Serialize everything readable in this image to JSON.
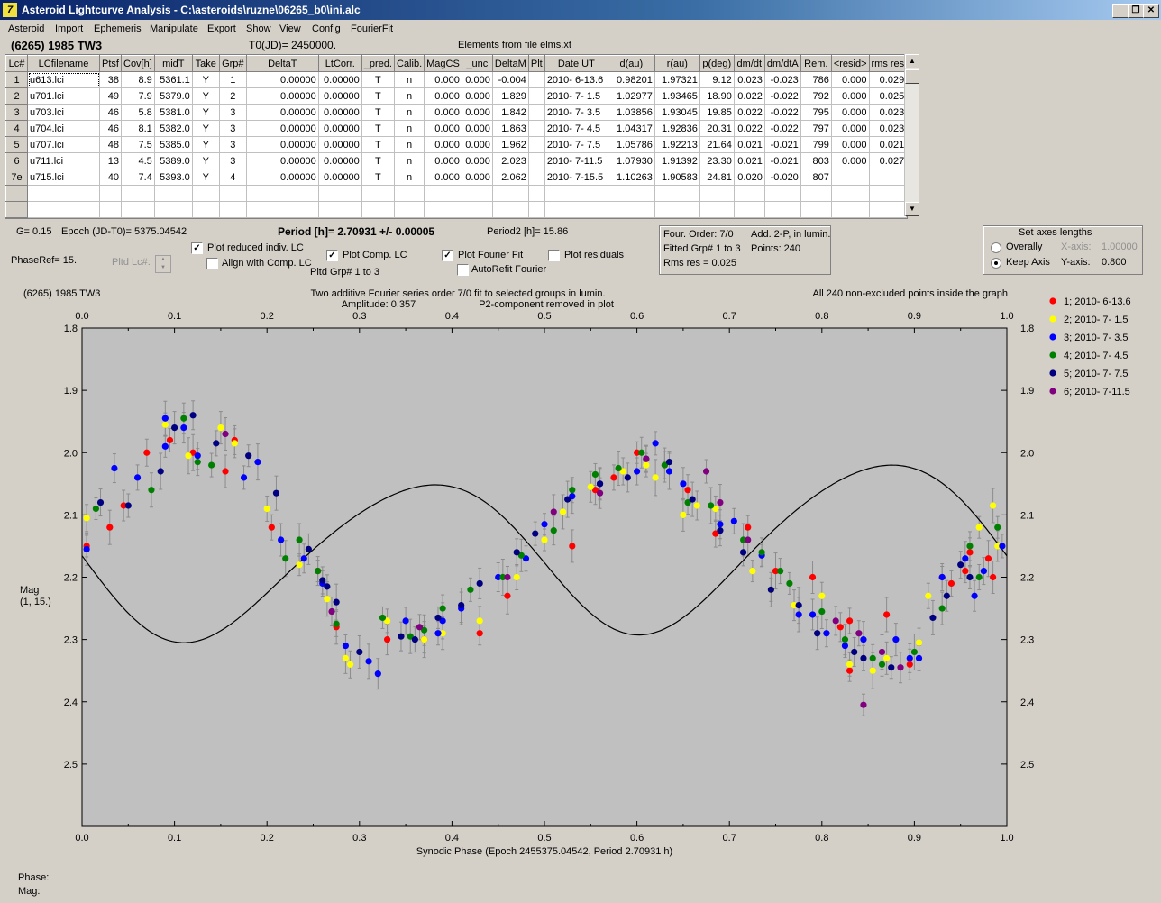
{
  "window": {
    "title": "Asteroid Lightcurve Analysis - C:\\asteroids\\ruzne\\06265_b0\\ini.alc",
    "min_label": "_",
    "restore_label": "❐",
    "close_label": "✕"
  },
  "menu": [
    "Asteroid",
    "Import",
    "Ephemeris",
    "Manipulate",
    "Export",
    "Show",
    "View",
    "Config",
    "FourierFit"
  ],
  "header": {
    "asteroid_name": "(6265) 1985 TW3",
    "t0": "T0(JD)= 2450000.",
    "elements_source": "Elements from file elms.xt"
  },
  "table": {
    "columns": [
      "Lc#",
      "LCfilename",
      "Ptsf",
      "Cov[h]",
      "midT",
      "Take",
      "Grp#",
      "DeltaT",
      "LtCorr.",
      "_pred.",
      "Calib.",
      "MagCS",
      "_unc",
      "DeltaM",
      "Plt",
      "Date UT",
      "d(au)",
      "r(au)",
      "p(deg)",
      "dm/dt",
      "dm/dtA",
      "Rem.",
      "<resid>",
      "rms res"
    ],
    "rows": [
      [
        "1",
        "u613.lci",
        "38",
        "8.9",
        "5361.1",
        "Y",
        "1",
        "0.00000",
        "0.00000",
        "T",
        "n",
        "0.000",
        "0.000",
        "-0.004",
        "",
        "2010- 6-13.6",
        "0.98201",
        "1.97321",
        "9.12",
        "0.023",
        "-0.023",
        "786",
        "0.000",
        "0.029"
      ],
      [
        "2",
        "u701.lci",
        "49",
        "7.9",
        "5379.0",
        "Y",
        "2",
        "0.00000",
        "0.00000",
        "T",
        "n",
        "0.000",
        "0.000",
        "1.829",
        "",
        "2010- 7- 1.5",
        "1.02977",
        "1.93465",
        "18.90",
        "0.022",
        "-0.022",
        "792",
        "0.000",
        "0.025"
      ],
      [
        "3",
        "u703.lci",
        "46",
        "5.8",
        "5381.0",
        "Y",
        "3",
        "0.00000",
        "0.00000",
        "T",
        "n",
        "0.000",
        "0.000",
        "1.842",
        "",
        "2010- 7- 3.5",
        "1.03856",
        "1.93045",
        "19.85",
        "0.022",
        "-0.022",
        "795",
        "0.000",
        "0.023"
      ],
      [
        "4",
        "u704.lci",
        "46",
        "8.1",
        "5382.0",
        "Y",
        "3",
        "0.00000",
        "0.00000",
        "T",
        "n",
        "0.000",
        "0.000",
        "1.863",
        "",
        "2010- 7- 4.5",
        "1.04317",
        "1.92836",
        "20.31",
        "0.022",
        "-0.022",
        "797",
        "0.000",
        "0.023"
      ],
      [
        "5",
        "u707.lci",
        "48",
        "7.5",
        "5385.0",
        "Y",
        "3",
        "0.00000",
        "0.00000",
        "T",
        "n",
        "0.000",
        "0.000",
        "1.962",
        "",
        "2010- 7- 7.5",
        "1.05786",
        "1.92213",
        "21.64",
        "0.021",
        "-0.021",
        "799",
        "0.000",
        "0.021"
      ],
      [
        "6",
        "u711.lci",
        "13",
        "4.5",
        "5389.0",
        "Y",
        "3",
        "0.00000",
        "0.00000",
        "T",
        "n",
        "0.000",
        "0.000",
        "2.023",
        "",
        "2010- 7-11.5",
        "1.07930",
        "1.91392",
        "23.30",
        "0.021",
        "-0.021",
        "803",
        "0.000",
        "0.027"
      ],
      [
        "7e",
        "u715.lci",
        "40",
        "7.4",
        "5393.0",
        "Y",
        "4",
        "0.00000",
        "0.00000",
        "T",
        "n",
        "0.000",
        "0.000",
        "2.062",
        "",
        "2010- 7-15.5",
        "1.10263",
        "1.90583",
        "24.81",
        "0.020",
        "-0.020",
        "807",
        "",
        ""
      ]
    ]
  },
  "controls": {
    "g_value": "G= 0.15",
    "epoch": "Epoch (JD-T0)= 5375.04542",
    "period": "Period [h]= 2.70931 +/- 0.00005",
    "period2": "Period2 [h]= 15.86",
    "phaseref": "PhaseRef= 15.",
    "pltd_lc": "Pltd Lc#:",
    "plot_reduced": "Plot reduced indiv. LC",
    "align_comp": "Align with Comp. LC",
    "plot_comp": "Plot Comp. LC",
    "pltd_grp": "Pltd Grp#  1   to    3",
    "plot_fourier": "Plot Fourier Fit",
    "autorefit": "AutoRefit Fourier",
    "plot_residuals": "Plot residuals",
    "four_order": "Four. Order:  7/0",
    "add_2p": "Add. 2-P, in lumin.",
    "fitted_grp": "Fitted Grp# 1 to 3",
    "points": "Points: 240",
    "rms_res": "Rms res     = 0.025",
    "axes_title": "Set axes lengths",
    "overally": "Overally",
    "keep_axis": "Keep Axis",
    "xaxis_label": "X-axis:",
    "xaxis_value": "1.00000",
    "yaxis_label": "Y-axis:",
    "yaxis_value": "0.800"
  },
  "plot_texts": {
    "top_left": "(6265) 1985 TW3",
    "top_center1": "Two additive Fourier series order 7/0 fit to selected groups in lumin.",
    "top_center2a": "Amplitude: 0.357",
    "top_center2b": "P2-component removed in plot",
    "top_right": "All 240 non-excluded points inside the graph",
    "ylabel1": "Mag",
    "ylabel2": "(1, 15.)",
    "xlabel": "Synodic Phase (Epoch 2455375.04542, Period 2.70931 h)",
    "phase_label": "Phase:",
    "mag_label": "Mag:"
  },
  "chart_data": {
    "type": "scatter",
    "x_ticks": [
      "0.0",
      "0.1",
      "0.2",
      "0.3",
      "0.4",
      "0.5",
      "0.6",
      "0.7",
      "0.8",
      "0.9",
      "1.0"
    ],
    "y_ticks": [
      "1.8",
      "1.9",
      "2.0",
      "2.1",
      "2.2",
      "2.3",
      "2.4",
      "2.5"
    ],
    "xlim": [
      0.0,
      1.0
    ],
    "ylim": [
      1.8,
      2.6
    ],
    "y_inverted": true,
    "series": [
      {
        "name": "1; 2010- 6-13.6",
        "color": "#ff0000",
        "points": [
          [
            0.005,
            2.15
          ],
          [
            0.03,
            2.12
          ],
          [
            0.045,
            2.085
          ],
          [
            0.07,
            2.0
          ],
          [
            0.095,
            1.98
          ],
          [
            0.12,
            2.0
          ],
          [
            0.155,
            2.03
          ],
          [
            0.165,
            1.98
          ],
          [
            0.205,
            2.12
          ],
          [
            0.255,
            2.19
          ],
          [
            0.275,
            2.28
          ],
          [
            0.33,
            2.3
          ],
          [
            0.37,
            2.3
          ],
          [
            0.43,
            2.29
          ],
          [
            0.46,
            2.23
          ],
          [
            0.53,
            2.15
          ],
          [
            0.555,
            2.06
          ],
          [
            0.575,
            2.04
          ],
          [
            0.6,
            2.0
          ],
          [
            0.63,
            2.02
          ],
          [
            0.655,
            2.06
          ],
          [
            0.685,
            2.13
          ],
          [
            0.72,
            2.12
          ],
          [
            0.75,
            2.19
          ],
          [
            0.79,
            2.2
          ],
          [
            0.82,
            2.28
          ],
          [
            0.83,
            2.27
          ],
          [
            0.83,
            2.35
          ],
          [
            0.87,
            2.26
          ],
          [
            0.895,
            2.34
          ],
          [
            0.93,
            2.2
          ],
          [
            0.955,
            2.19
          ],
          [
            0.98,
            2.17
          ],
          [
            0.985,
            2.2
          ],
          [
            0.96,
            2.16
          ],
          [
            0.94,
            2.21
          ]
        ]
      },
      {
        "name": "2; 2010- 7- 1.5",
        "color": "#ffff00",
        "points": [
          [
            0.005,
            2.105
          ],
          [
            0.09,
            1.955
          ],
          [
            0.115,
            2.005
          ],
          [
            0.15,
            1.96
          ],
          [
            0.165,
            1.985
          ],
          [
            0.2,
            2.09
          ],
          [
            0.235,
            2.18
          ],
          [
            0.265,
            2.235
          ],
          [
            0.285,
            2.33
          ],
          [
            0.29,
            2.34
          ],
          [
            0.33,
            2.27
          ],
          [
            0.37,
            2.3
          ],
          [
            0.39,
            2.29
          ],
          [
            0.43,
            2.27
          ],
          [
            0.47,
            2.2
          ],
          [
            0.5,
            2.14
          ],
          [
            0.52,
            2.095
          ],
          [
            0.55,
            2.055
          ],
          [
            0.585,
            2.03
          ],
          [
            0.61,
            2.02
          ],
          [
            0.62,
            2.04
          ],
          [
            0.65,
            2.1
          ],
          [
            0.665,
            2.085
          ],
          [
            0.685,
            2.09
          ],
          [
            0.725,
            2.19
          ],
          [
            0.745,
            2.22
          ],
          [
            0.77,
            2.245
          ],
          [
            0.8,
            2.23
          ],
          [
            0.83,
            2.34
          ],
          [
            0.855,
            2.35
          ],
          [
            0.87,
            2.33
          ],
          [
            0.905,
            2.305
          ],
          [
            0.915,
            2.23
          ],
          [
            0.97,
            2.12
          ],
          [
            0.985,
            2.085
          ],
          [
            0.99,
            2.15
          ]
        ]
      },
      {
        "name": "3; 2010- 7- 3.5",
        "color": "#0000ff",
        "points": [
          [
            0.005,
            2.155
          ],
          [
            0.035,
            2.025
          ],
          [
            0.06,
            2.04
          ],
          [
            0.09,
            1.99
          ],
          [
            0.09,
            1.945
          ],
          [
            0.11,
            1.96
          ],
          [
            0.125,
            2.005
          ],
          [
            0.175,
            2.04
          ],
          [
            0.19,
            2.015
          ],
          [
            0.215,
            2.14
          ],
          [
            0.24,
            2.17
          ],
          [
            0.26,
            2.21
          ],
          [
            0.285,
            2.31
          ],
          [
            0.31,
            2.335
          ],
          [
            0.32,
            2.355
          ],
          [
            0.35,
            2.27
          ],
          [
            0.385,
            2.29
          ],
          [
            0.39,
            2.27
          ],
          [
            0.41,
            2.25
          ],
          [
            0.45,
            2.2
          ],
          [
            0.48,
            2.17
          ],
          [
            0.5,
            2.115
          ],
          [
            0.53,
            2.07
          ],
          [
            0.56,
            2.05
          ],
          [
            0.6,
            2.03
          ],
          [
            0.62,
            1.985
          ],
          [
            0.635,
            2.03
          ],
          [
            0.65,
            2.05
          ],
          [
            0.69,
            2.115
          ],
          [
            0.705,
            2.11
          ],
          [
            0.735,
            2.165
          ],
          [
            0.775,
            2.26
          ],
          [
            0.79,
            2.26
          ],
          [
            0.805,
            2.29
          ],
          [
            0.825,
            2.31
          ],
          [
            0.845,
            2.3
          ],
          [
            0.88,
            2.3
          ],
          [
            0.895,
            2.33
          ],
          [
            0.905,
            2.33
          ],
          [
            0.93,
            2.2
          ],
          [
            0.955,
            2.17
          ],
          [
            0.965,
            2.23
          ],
          [
            0.975,
            2.19
          ],
          [
            0.995,
            2.15
          ]
        ]
      },
      {
        "name": "4; 2010- 7- 4.5",
        "color": "#008000",
        "points": [
          [
            0.015,
            2.09
          ],
          [
            0.075,
            2.06
          ],
          [
            0.11,
            1.945
          ],
          [
            0.125,
            2.015
          ],
          [
            0.14,
            2.02
          ],
          [
            0.22,
            2.17
          ],
          [
            0.235,
            2.14
          ],
          [
            0.255,
            2.19
          ],
          [
            0.275,
            2.275
          ],
          [
            0.325,
            2.265
          ],
          [
            0.355,
            2.295
          ],
          [
            0.37,
            2.285
          ],
          [
            0.39,
            2.25
          ],
          [
            0.42,
            2.22
          ],
          [
            0.455,
            2.2
          ],
          [
            0.475,
            2.165
          ],
          [
            0.51,
            2.125
          ],
          [
            0.53,
            2.06
          ],
          [
            0.555,
            2.035
          ],
          [
            0.58,
            2.025
          ],
          [
            0.605,
            2.0
          ],
          [
            0.63,
            2.02
          ],
          [
            0.655,
            2.08
          ],
          [
            0.68,
            2.085
          ],
          [
            0.715,
            2.14
          ],
          [
            0.735,
            2.16
          ],
          [
            0.755,
            2.19
          ],
          [
            0.765,
            2.21
          ],
          [
            0.8,
            2.255
          ],
          [
            0.825,
            2.3
          ],
          [
            0.855,
            2.33
          ],
          [
            0.865,
            2.34
          ],
          [
            0.9,
            2.32
          ],
          [
            0.93,
            2.25
          ],
          [
            0.96,
            2.15
          ],
          [
            0.97,
            2.2
          ],
          [
            0.99,
            2.12
          ]
        ]
      },
      {
        "name": "5; 2010- 7- 7.5",
        "color": "#000080",
        "points": [
          [
            0.02,
            2.08
          ],
          [
            0.05,
            2.085
          ],
          [
            0.085,
            2.03
          ],
          [
            0.1,
            1.96
          ],
          [
            0.12,
            1.94
          ],
          [
            0.145,
            1.985
          ],
          [
            0.18,
            2.005
          ],
          [
            0.21,
            2.065
          ],
          [
            0.245,
            2.155
          ],
          [
            0.26,
            2.205
          ],
          [
            0.265,
            2.215
          ],
          [
            0.275,
            2.24
          ],
          [
            0.3,
            2.32
          ],
          [
            0.345,
            2.295
          ],
          [
            0.36,
            2.3
          ],
          [
            0.385,
            2.265
          ],
          [
            0.41,
            2.245
          ],
          [
            0.43,
            2.21
          ],
          [
            0.47,
            2.16
          ],
          [
            0.49,
            2.13
          ],
          [
            0.525,
            2.075
          ],
          [
            0.56,
            2.05
          ],
          [
            0.59,
            2.04
          ],
          [
            0.61,
            2.01
          ],
          [
            0.635,
            2.015
          ],
          [
            0.66,
            2.075
          ],
          [
            0.69,
            2.125
          ],
          [
            0.715,
            2.16
          ],
          [
            0.745,
            2.22
          ],
          [
            0.775,
            2.245
          ],
          [
            0.795,
            2.29
          ],
          [
            0.835,
            2.32
          ],
          [
            0.845,
            2.33
          ],
          [
            0.875,
            2.345
          ],
          [
            0.92,
            2.265
          ],
          [
            0.935,
            2.23
          ],
          [
            0.95,
            2.18
          ],
          [
            0.96,
            2.2
          ]
        ]
      },
      {
        "name": "6; 2010- 7-11.5",
        "color": "#800080",
        "points": [
          [
            0.155,
            1.97
          ],
          [
            0.27,
            2.255
          ],
          [
            0.365,
            2.28
          ],
          [
            0.46,
            2.2
          ],
          [
            0.51,
            2.095
          ],
          [
            0.56,
            2.065
          ],
          [
            0.61,
            2.01
          ],
          [
            0.675,
            2.03
          ],
          [
            0.69,
            2.08
          ],
          [
            0.72,
            2.14
          ],
          [
            0.815,
            2.27
          ],
          [
            0.84,
            2.29
          ],
          [
            0.845,
            2.405
          ],
          [
            0.865,
            2.32
          ],
          [
            0.885,
            2.345
          ]
        ]
      }
    ]
  }
}
